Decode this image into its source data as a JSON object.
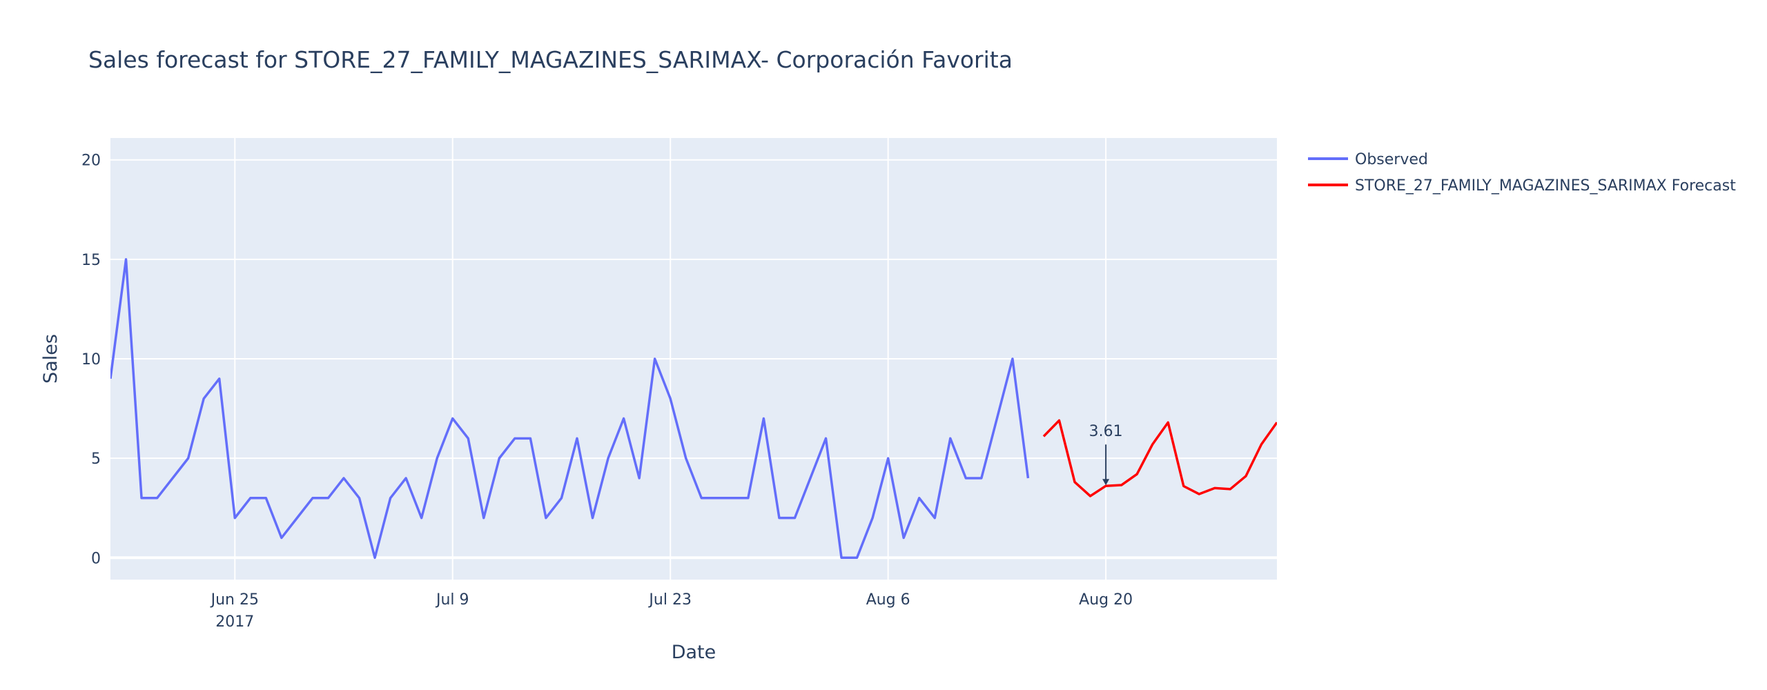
{
  "chart_data": {
    "type": "line",
    "title": "Sales forecast for STORE_27_FAMILY_MAGAZINES_SARIMAX- Corporación Favorita",
    "xlabel": "Date",
    "ylabel": "Sales",
    "x_range": [
      "2017-06-17",
      "2017-08-31"
    ],
    "ylim": [
      -1.1,
      21.1
    ],
    "y_ticks": [
      0,
      5,
      10,
      15,
      20
    ],
    "x_ticks": [
      {
        "date": "2017-06-25",
        "label": "Jun 25",
        "sublabel": "2017"
      },
      {
        "date": "2017-07-09",
        "label": "Jul 9",
        "sublabel": ""
      },
      {
        "date": "2017-07-23",
        "label": "Jul 23",
        "sublabel": ""
      },
      {
        "date": "2017-08-06",
        "label": "Aug 6",
        "sublabel": ""
      },
      {
        "date": "2017-08-20",
        "label": "Aug 20",
        "sublabel": ""
      }
    ],
    "grid": true,
    "legend_position": "right",
    "series": [
      {
        "name": "Observed",
        "color": "#636efa",
        "x": [
          "2017-06-17",
          "2017-06-18",
          "2017-06-19",
          "2017-06-20",
          "2017-06-21",
          "2017-06-22",
          "2017-06-23",
          "2017-06-24",
          "2017-06-25",
          "2017-06-26",
          "2017-06-27",
          "2017-06-28",
          "2017-06-29",
          "2017-06-30",
          "2017-07-01",
          "2017-07-02",
          "2017-07-03",
          "2017-07-04",
          "2017-07-05",
          "2017-07-06",
          "2017-07-07",
          "2017-07-08",
          "2017-07-09",
          "2017-07-10",
          "2017-07-11",
          "2017-07-12",
          "2017-07-13",
          "2017-07-14",
          "2017-07-15",
          "2017-07-16",
          "2017-07-17",
          "2017-07-18",
          "2017-07-19",
          "2017-07-20",
          "2017-07-21",
          "2017-07-22",
          "2017-07-23",
          "2017-07-24",
          "2017-07-25",
          "2017-07-26",
          "2017-07-27",
          "2017-07-28",
          "2017-07-29",
          "2017-07-30",
          "2017-07-31",
          "2017-08-01",
          "2017-08-02",
          "2017-08-03",
          "2017-08-04",
          "2017-08-05",
          "2017-08-06",
          "2017-08-07",
          "2017-08-08",
          "2017-08-09",
          "2017-08-10",
          "2017-08-11",
          "2017-08-12",
          "2017-08-13",
          "2017-08-14",
          "2017-08-15"
        ],
        "values": [
          9,
          15,
          3,
          3,
          4,
          5,
          8,
          9,
          2,
          3,
          3,
          1,
          2,
          3,
          3,
          4,
          3,
          0,
          3,
          4,
          2,
          5,
          7,
          6,
          2,
          5,
          6,
          6,
          2,
          3,
          6,
          2,
          5,
          7,
          4,
          10,
          8,
          5,
          3,
          3,
          3,
          3,
          7,
          2,
          2,
          4,
          6,
          0,
          0,
          2,
          5,
          1,
          3,
          2,
          6,
          4,
          4,
          7,
          10,
          4
        ]
      },
      {
        "name": "STORE_27_FAMILY_MAGAZINES_SARIMAX Forecast",
        "color": "#ff0000",
        "x": [
          "2017-08-16",
          "2017-08-17",
          "2017-08-18",
          "2017-08-19",
          "2017-08-20",
          "2017-08-21",
          "2017-08-22",
          "2017-08-23",
          "2017-08-24",
          "2017-08-25",
          "2017-08-26",
          "2017-08-27",
          "2017-08-28",
          "2017-08-29",
          "2017-08-30",
          "2017-08-31"
        ],
        "values": [
          6.1,
          6.9,
          3.8,
          3.1,
          3.61,
          3.65,
          4.2,
          5.7,
          6.8,
          3.6,
          3.2,
          3.5,
          3.45,
          4.1,
          5.7,
          6.8
        ]
      }
    ],
    "annotations": [
      {
        "x": "2017-08-20",
        "y": 3.61,
        "text": "3.61"
      }
    ]
  },
  "colors": {
    "plot_background": "#e5ecf6",
    "grid": "#ffffff",
    "text": "#2a3f5f"
  }
}
